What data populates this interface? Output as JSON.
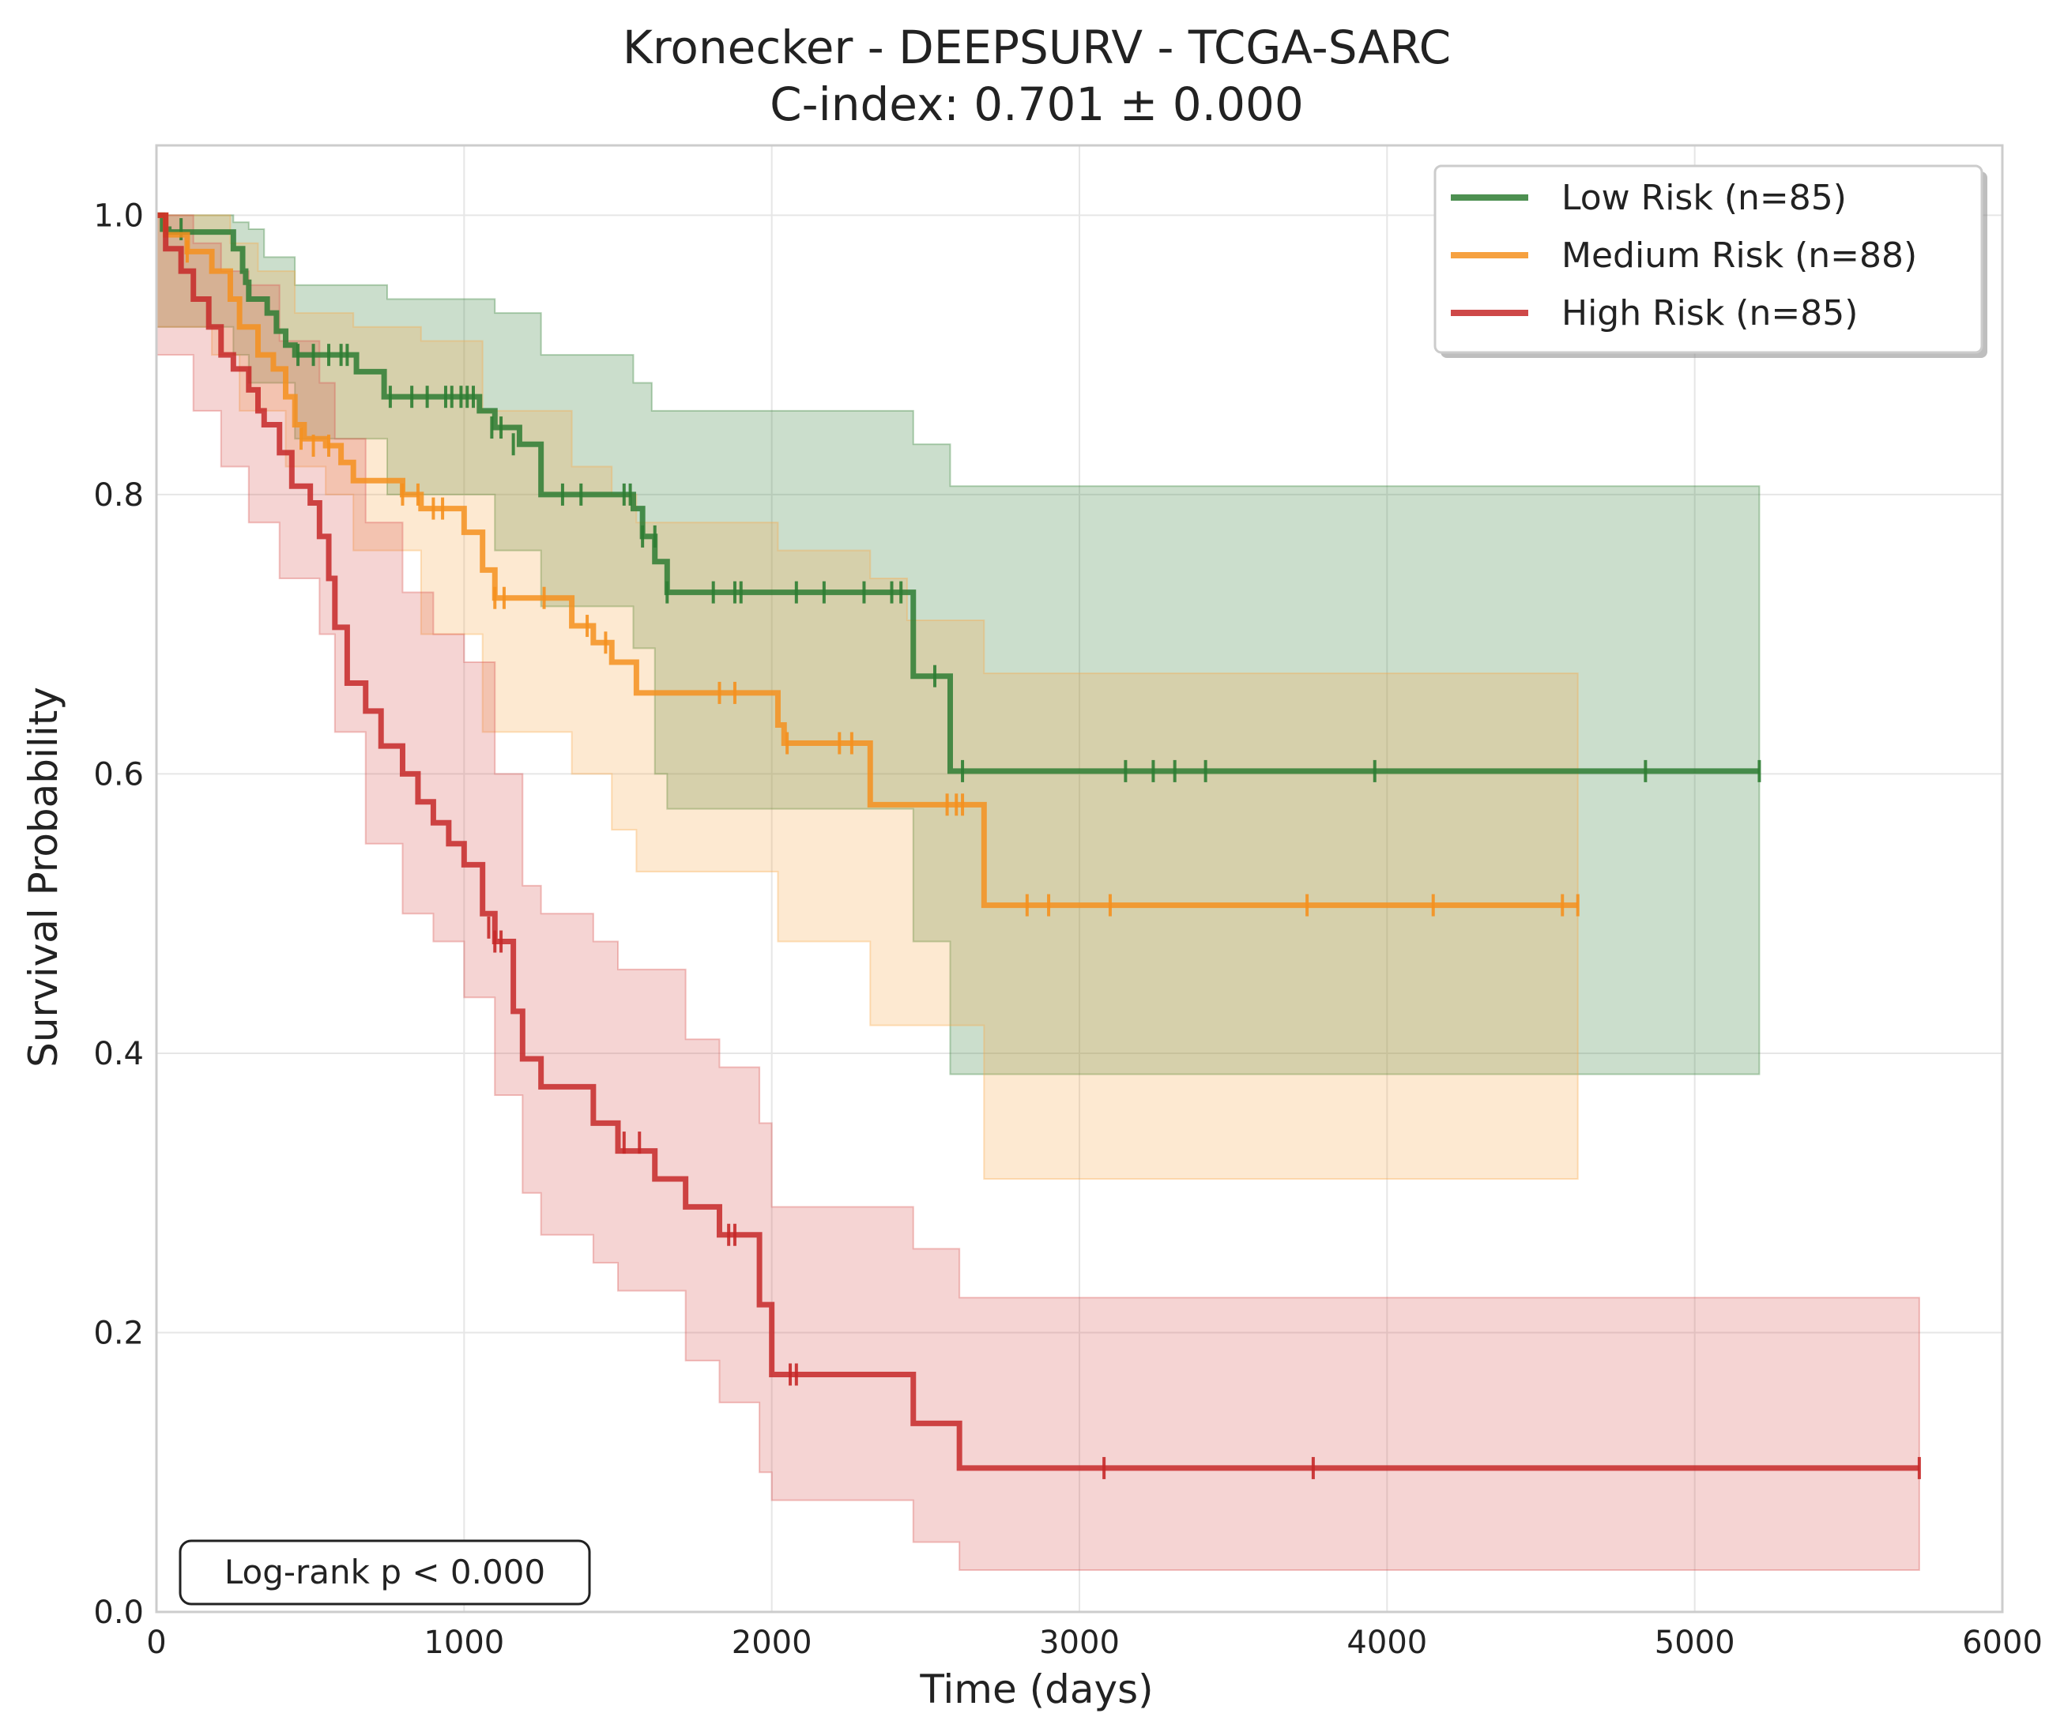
{
  "chart_data": {
    "type": "line",
    "title": "Kronecker - DEEPSURV - TCGA-SARC",
    "subtitle": "C-index: 0.701 ± 0.000",
    "xlabel": "Time (days)",
    "ylabel": "Survival Probability",
    "xlim": [
      0,
      6000
    ],
    "ylim": [
      0,
      1.05
    ],
    "xticks": [
      0,
      1000,
      2000,
      3000,
      4000,
      5000,
      6000
    ],
    "xtick_labels": [
      "0",
      "1000",
      "2000",
      "3000",
      "4000",
      "5000",
      "6000"
    ],
    "yticks": [
      0.0,
      0.2,
      0.4,
      0.6,
      0.8,
      1.0
    ],
    "ytick_labels": [
      "0.0",
      "0.2",
      "0.4",
      "0.6",
      "0.8",
      "1.0"
    ],
    "grid": true,
    "legend_position": "top-right",
    "annotation": "Log-rank p < 0.000",
    "series": [
      {
        "name": "Low Risk (n=85)",
        "color": "#2e7d32",
        "band_color": "#2e7d32",
        "steps": [
          [
            0,
            1.0
          ],
          [
            20,
            0.99
          ],
          [
            40,
            0.988
          ],
          [
            250,
            0.976
          ],
          [
            280,
            0.96
          ],
          [
            290,
            0.952
          ],
          [
            300,
            0.94
          ],
          [
            360,
            0.93
          ],
          [
            390,
            0.917
          ],
          [
            420,
            0.907
          ],
          [
            450,
            0.9
          ],
          [
            500,
            0.9
          ],
          [
            650,
            0.888
          ],
          [
            740,
            0.87
          ],
          [
            980,
            0.87
          ],
          [
            1050,
            0.86
          ],
          [
            1100,
            0.848
          ],
          [
            1180,
            0.836
          ],
          [
            1250,
            0.8
          ],
          [
            1550,
            0.79
          ],
          [
            1580,
            0.77
          ],
          [
            1620,
            0.752
          ],
          [
            1660,
            0.73
          ],
          [
            2460,
            0.67
          ],
          [
            2580,
            0.602
          ],
          [
            5210,
            0.602
          ]
        ],
        "ci_upper": [
          [
            0,
            1.0
          ],
          [
            250,
            0.995
          ],
          [
            300,
            0.99
          ],
          [
            350,
            0.97
          ],
          [
            450,
            0.95
          ],
          [
            750,
            0.94
          ],
          [
            1100,
            0.93
          ],
          [
            1250,
            0.9
          ],
          [
            1550,
            0.88
          ],
          [
            1610,
            0.86
          ],
          [
            2460,
            0.836
          ],
          [
            2580,
            0.806
          ],
          [
            5210,
            0.766
          ]
        ],
        "ci_lower": [
          [
            0,
            0.92
          ],
          [
            250,
            0.9
          ],
          [
            300,
            0.88
          ],
          [
            450,
            0.84
          ],
          [
            750,
            0.8
          ],
          [
            1100,
            0.76
          ],
          [
            1250,
            0.72
          ],
          [
            1550,
            0.69
          ],
          [
            1620,
            0.6
          ],
          [
            1660,
            0.575
          ],
          [
            2460,
            0.48
          ],
          [
            2580,
            0.385
          ],
          [
            5210,
            0.385
          ]
        ],
        "censors": [
          [
            80,
            0.99
          ],
          [
            460,
            0.9
          ],
          [
            510,
            0.9
          ],
          [
            560,
            0.9
          ],
          [
            600,
            0.9
          ],
          [
            620,
            0.9
          ],
          [
            760,
            0.87
          ],
          [
            830,
            0.87
          ],
          [
            880,
            0.87
          ],
          [
            940,
            0.87
          ],
          [
            960,
            0.87
          ],
          [
            990,
            0.87
          ],
          [
            1010,
            0.87
          ],
          [
            1030,
            0.87
          ],
          [
            1090,
            0.848
          ],
          [
            1120,
            0.848
          ],
          [
            1160,
            0.836
          ],
          [
            1320,
            0.8
          ],
          [
            1380,
            0.8
          ],
          [
            1520,
            0.8
          ],
          [
            1540,
            0.8
          ],
          [
            1580,
            0.77
          ],
          [
            1620,
            0.77
          ],
          [
            1660,
            0.73
          ],
          [
            1810,
            0.73
          ],
          [
            1880,
            0.73
          ],
          [
            1900,
            0.73
          ],
          [
            2080,
            0.73
          ],
          [
            2170,
            0.73
          ],
          [
            2300,
            0.73
          ],
          [
            2390,
            0.73
          ],
          [
            2420,
            0.73
          ],
          [
            2530,
            0.67
          ],
          [
            2620,
            0.602
          ],
          [
            3150,
            0.602
          ],
          [
            3240,
            0.602
          ],
          [
            3310,
            0.602
          ],
          [
            3410,
            0.602
          ],
          [
            3960,
            0.602
          ],
          [
            4840,
            0.602
          ],
          [
            5210,
            0.602
          ]
        ]
      },
      {
        "name": "Medium Risk (n=88)",
        "color": "#f5901e",
        "band_color": "#f8a848",
        "steps": [
          [
            0,
            1.0
          ],
          [
            30,
            0.986
          ],
          [
            100,
            0.974
          ],
          [
            180,
            0.96
          ],
          [
            240,
            0.94
          ],
          [
            270,
            0.92
          ],
          [
            330,
            0.9
          ],
          [
            380,
            0.89
          ],
          [
            420,
            0.87
          ],
          [
            450,
            0.85
          ],
          [
            480,
            0.84
          ],
          [
            550,
            0.835
          ],
          [
            600,
            0.823
          ],
          [
            640,
            0.81
          ],
          [
            800,
            0.8
          ],
          [
            860,
            0.79
          ],
          [
            1000,
            0.773
          ],
          [
            1060,
            0.746
          ],
          [
            1100,
            0.726
          ],
          [
            1350,
            0.706
          ],
          [
            1420,
            0.694
          ],
          [
            1480,
            0.68
          ],
          [
            1560,
            0.658
          ],
          [
            2020,
            0.635
          ],
          [
            2040,
            0.622
          ],
          [
            2320,
            0.578
          ],
          [
            2690,
            0.506
          ],
          [
            4620,
            0.506
          ]
        ],
        "ci_upper": [
          [
            0,
            1.0
          ],
          [
            240,
            0.98
          ],
          [
            330,
            0.96
          ],
          [
            450,
            0.93
          ],
          [
            640,
            0.92
          ],
          [
            860,
            0.91
          ],
          [
            1060,
            0.86
          ],
          [
            1350,
            0.82
          ],
          [
            1480,
            0.8
          ],
          [
            1560,
            0.78
          ],
          [
            2020,
            0.76
          ],
          [
            2320,
            0.74
          ],
          [
            2440,
            0.71
          ],
          [
            2690,
            0.672
          ],
          [
            4620,
            0.672
          ]
        ],
        "ci_lower": [
          [
            0,
            0.92
          ],
          [
            180,
            0.9
          ],
          [
            270,
            0.86
          ],
          [
            420,
            0.82
          ],
          [
            550,
            0.8
          ],
          [
            640,
            0.76
          ],
          [
            860,
            0.7
          ],
          [
            1060,
            0.63
          ],
          [
            1350,
            0.6
          ],
          [
            1480,
            0.56
          ],
          [
            1560,
            0.53
          ],
          [
            2020,
            0.48
          ],
          [
            2320,
            0.42
          ],
          [
            2690,
            0.31
          ],
          [
            4620,
            0.31
          ]
        ],
        "censors": [
          [
            100,
            0.974
          ],
          [
            470,
            0.84
          ],
          [
            510,
            0.835
          ],
          [
            560,
            0.835
          ],
          [
            800,
            0.8
          ],
          [
            850,
            0.8
          ],
          [
            900,
            0.79
          ],
          [
            930,
            0.79
          ],
          [
            1100,
            0.726
          ],
          [
            1130,
            0.726
          ],
          [
            1260,
            0.726
          ],
          [
            1400,
            0.706
          ],
          [
            1460,
            0.694
          ],
          [
            1830,
            0.658
          ],
          [
            1880,
            0.658
          ],
          [
            2050,
            0.622
          ],
          [
            2220,
            0.622
          ],
          [
            2260,
            0.622
          ],
          [
            2570,
            0.578
          ],
          [
            2600,
            0.578
          ],
          [
            2620,
            0.578
          ],
          [
            2830,
            0.506
          ],
          [
            2900,
            0.506
          ],
          [
            3100,
            0.506
          ],
          [
            3740,
            0.506
          ],
          [
            4150,
            0.506
          ],
          [
            4570,
            0.506
          ],
          [
            4620,
            0.506
          ]
        ]
      },
      {
        "name": "High Risk (n=85)",
        "color": "#c62828",
        "band_color": "#d9534f",
        "steps": [
          [
            0,
            1.0
          ],
          [
            30,
            0.976
          ],
          [
            80,
            0.96
          ],
          [
            120,
            0.94
          ],
          [
            170,
            0.92
          ],
          [
            210,
            0.9
          ],
          [
            250,
            0.89
          ],
          [
            300,
            0.875
          ],
          [
            330,
            0.86
          ],
          [
            350,
            0.85
          ],
          [
            400,
            0.83
          ],
          [
            440,
            0.806
          ],
          [
            500,
            0.794
          ],
          [
            530,
            0.77
          ],
          [
            560,
            0.74
          ],
          [
            580,
            0.705
          ],
          [
            620,
            0.665
          ],
          [
            680,
            0.645
          ],
          [
            730,
            0.62
          ],
          [
            800,
            0.6
          ],
          [
            850,
            0.58
          ],
          [
            900,
            0.565
          ],
          [
            950,
            0.55
          ],
          [
            1000,
            0.535
          ],
          [
            1060,
            0.5
          ],
          [
            1100,
            0.48
          ],
          [
            1160,
            0.43
          ],
          [
            1190,
            0.396
          ],
          [
            1250,
            0.376
          ],
          [
            1420,
            0.35
          ],
          [
            1500,
            0.33
          ],
          [
            1620,
            0.31
          ],
          [
            1720,
            0.29
          ],
          [
            1830,
            0.27
          ],
          [
            1960,
            0.22
          ],
          [
            2000,
            0.17
          ],
          [
            2460,
            0.135
          ],
          [
            2610,
            0.103
          ],
          [
            5730,
            0.103
          ]
        ],
        "ci_upper": [
          [
            0,
            1.0
          ],
          [
            120,
            0.98
          ],
          [
            210,
            0.96
          ],
          [
            300,
            0.95
          ],
          [
            400,
            0.91
          ],
          [
            530,
            0.88
          ],
          [
            580,
            0.84
          ],
          [
            680,
            0.78
          ],
          [
            800,
            0.73
          ],
          [
            900,
            0.7
          ],
          [
            1000,
            0.68
          ],
          [
            1100,
            0.6
          ],
          [
            1190,
            0.52
          ],
          [
            1250,
            0.5
          ],
          [
            1420,
            0.48
          ],
          [
            1500,
            0.46
          ],
          [
            1720,
            0.41
          ],
          [
            1830,
            0.39
          ],
          [
            1960,
            0.35
          ],
          [
            2000,
            0.29
          ],
          [
            2460,
            0.26
          ],
          [
            2610,
            0.225
          ],
          [
            5730,
            0.225
          ]
        ],
        "ci_lower": [
          [
            0,
            0.9
          ],
          [
            120,
            0.86
          ],
          [
            210,
            0.82
          ],
          [
            300,
            0.78
          ],
          [
            400,
            0.74
          ],
          [
            530,
            0.7
          ],
          [
            580,
            0.63
          ],
          [
            680,
            0.55
          ],
          [
            800,
            0.5
          ],
          [
            900,
            0.48
          ],
          [
            1000,
            0.44
          ],
          [
            1100,
            0.37
          ],
          [
            1190,
            0.3
          ],
          [
            1250,
            0.27
          ],
          [
            1420,
            0.25
          ],
          [
            1500,
            0.23
          ],
          [
            1720,
            0.18
          ],
          [
            1830,
            0.15
          ],
          [
            1960,
            0.1
          ],
          [
            2000,
            0.08
          ],
          [
            2460,
            0.05
          ],
          [
            2610,
            0.03
          ],
          [
            5730,
            0.03
          ]
        ],
        "censors": [
          [
            1080,
            0.49
          ],
          [
            1100,
            0.48
          ],
          [
            1120,
            0.48
          ],
          [
            1520,
            0.336
          ],
          [
            1570,
            0.336
          ],
          [
            1860,
            0.27
          ],
          [
            1880,
            0.27
          ],
          [
            2060,
            0.17
          ],
          [
            2080,
            0.17
          ],
          [
            3080,
            0.103
          ],
          [
            3760,
            0.103
          ],
          [
            5730,
            0.103
          ]
        ]
      }
    ]
  }
}
